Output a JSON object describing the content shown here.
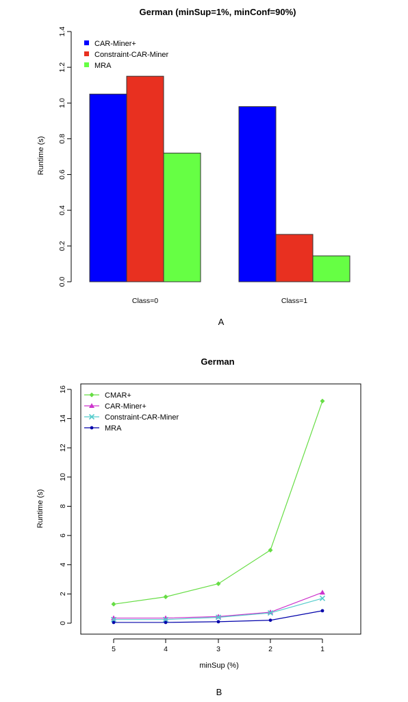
{
  "chart_data": [
    {
      "type": "bar",
      "title": "German (minSup=1%, minConf=90%)",
      "xlabel": "",
      "ylabel": "Runtime (s)",
      "panel_label": "A",
      "categories": [
        "Class=0",
        "Class=1"
      ],
      "series": [
        {
          "name": "CAR-Miner+",
          "color": "#0000ff",
          "values": [
            1.05,
            0.98
          ]
        },
        {
          "name": "Constraint-CAR-Miner",
          "color": "#e83020",
          "values": [
            1.15,
            0.265
          ]
        },
        {
          "name": "MRA",
          "color": "#66ff44",
          "values": [
            0.72,
            0.145
          ]
        }
      ],
      "ylim": [
        0,
        1.4
      ],
      "yticks": [
        "0.0",
        "0.2",
        "0.4",
        "0.6",
        "0.8",
        "1.0",
        "1.2",
        "1.4"
      ],
      "ytick_values": [
        0,
        0.2,
        0.4,
        0.6,
        0.8,
        1.0,
        1.2,
        1.4
      ],
      "legend_position": "top-left",
      "grid": false
    },
    {
      "type": "line",
      "title": "German",
      "xlabel": "minSup (%)",
      "ylabel": "Runtime (s)",
      "panel_label": "B",
      "x": [
        "5",
        "4",
        "3",
        "2",
        "1"
      ],
      "series": [
        {
          "name": "CMAR+",
          "color": "#66dd44",
          "marker": "diamond",
          "values": [
            1.3,
            1.8,
            2.7,
            5.0,
            15.2
          ]
        },
        {
          "name": "CAR-Miner+",
          "color": "#cc33cc",
          "marker": "triangle",
          "values": [
            0.35,
            0.35,
            0.45,
            0.75,
            2.1
          ]
        },
        {
          "name": "Constraint-CAR-Miner",
          "color": "#55cccc",
          "marker": "cross",
          "values": [
            0.25,
            0.25,
            0.4,
            0.7,
            1.7
          ]
        },
        {
          "name": "MRA",
          "color": "#0000aa",
          "marker": "dot",
          "values": [
            0.05,
            0.05,
            0.1,
            0.2,
            0.85
          ]
        }
      ],
      "ylim": [
        0,
        16
      ],
      "yticks": [
        "0",
        "2",
        "4",
        "6",
        "8",
        "10",
        "12",
        "14",
        "16"
      ],
      "ytick_values": [
        0,
        2,
        4,
        6,
        8,
        10,
        12,
        14,
        16
      ],
      "legend_position": "top-left",
      "grid": false
    }
  ]
}
